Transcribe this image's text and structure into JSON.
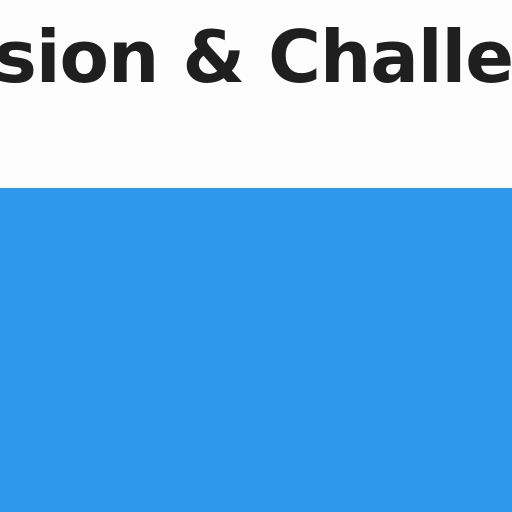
{
  "heading": {
    "text": "sion & Challer"
  },
  "colors": {
    "background": "#ffffff",
    "heading_text": "#1f1f1f",
    "panel": "#2e98ec"
  }
}
